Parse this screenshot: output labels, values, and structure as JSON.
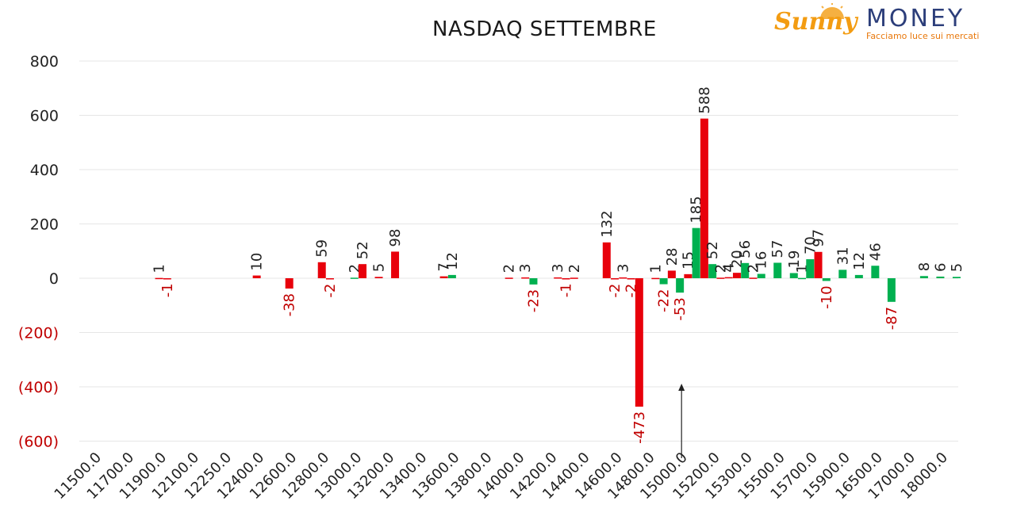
{
  "title": "NASDAQ SETTEMBRE",
  "logo": {
    "brand_word": "Sunny",
    "brand_name": "MONEY",
    "tagline": "Facciamo luce sui mercati"
  },
  "colors": {
    "red": "#e8000b",
    "green": "#00b050",
    "negative_tick": "#c00000",
    "positive_tick": "#222222"
  },
  "chart_data": {
    "type": "bar",
    "categories": [
      "11500.0",
      "11700.0",
      "11900.0",
      "12100.0",
      "12250.0",
      "12400.0",
      "12600.0",
      "12800.0",
      "13000.0",
      "13200.0",
      "13400.0",
      "13600.0",
      "13800.0",
      "14000.0",
      "14200.0",
      "14400.0",
      "14600.0",
      "14800.0",
      "15000.0",
      "15200.0",
      "15300.0",
      "15500.0",
      "15700.0",
      "15900.0",
      "16500.0",
      "17000.0",
      "18000.0"
    ],
    "ylim": [
      -600,
      800
    ],
    "yticks": [
      800,
      600,
      400,
      200,
      0,
      -200,
      -400,
      -600
    ],
    "ytick_labels": [
      "800",
      "600",
      "400",
      "200",
      "0",
      "(200)",
      "(400)",
      "(600)"
    ],
    "grid": true,
    "annotation": "arrow pointing up at 15000.0",
    "bars": [
      {
        "pos": 2.45,
        "value": 1,
        "color": "red"
      },
      {
        "pos": 2.7,
        "value": -1,
        "color": "red"
      },
      {
        "pos": 5.45,
        "value": 10,
        "color": "red"
      },
      {
        "pos": 6.45,
        "value": -38,
        "color": "red"
      },
      {
        "pos": 7.45,
        "value": 59,
        "color": "red"
      },
      {
        "pos": 7.7,
        "value": -2,
        "color": "red"
      },
      {
        "pos": 8.45,
        "value": 2,
        "color": "green"
      },
      {
        "pos": 8.7,
        "value": 52,
        "color": "red"
      },
      {
        "pos": 9.2,
        "value": 5,
        "color": "red"
      },
      {
        "pos": 9.7,
        "value": 98,
        "color": "red"
      },
      {
        "pos": 11.2,
        "value": 7,
        "color": "red"
      },
      {
        "pos": 11.45,
        "value": 12,
        "color": "green"
      },
      {
        "pos": 13.2,
        "value": 2,
        "color": "red"
      },
      {
        "pos": 13.7,
        "value": 3,
        "color": "red"
      },
      {
        "pos": 13.95,
        "value": -23,
        "color": "green"
      },
      {
        "pos": 14.7,
        "value": 3,
        "color": "red"
      },
      {
        "pos": 14.95,
        "value": -1,
        "color": "red"
      },
      {
        "pos": 15.2,
        "value": 2,
        "color": "red"
      },
      {
        "pos": 16.2,
        "value": 132,
        "color": "red"
      },
      {
        "pos": 16.45,
        "value": -2,
        "color": "red"
      },
      {
        "pos": 16.7,
        "value": 3,
        "color": "red"
      },
      {
        "pos": 16.95,
        "value": -2,
        "color": "red"
      },
      {
        "pos": 17.2,
        "value": -473,
        "color": "red"
      },
      {
        "pos": 17.7,
        "value": 1,
        "color": "red"
      },
      {
        "pos": 17.95,
        "value": -22,
        "color": "green"
      },
      {
        "pos": 18.2,
        "value": 28,
        "color": "red"
      },
      {
        "pos": 18.45,
        "value": -53,
        "color": "green"
      },
      {
        "pos": 18.7,
        "value": 15,
        "color": "red"
      },
      {
        "pos": 18.95,
        "value": 185,
        "color": "green"
      },
      {
        "pos": 19.2,
        "value": 588,
        "color": "red"
      },
      {
        "pos": 19.45,
        "value": 52,
        "color": "green"
      },
      {
        "pos": 19.7,
        "value": 2,
        "color": "red"
      },
      {
        "pos": 19.95,
        "value": 4,
        "color": "red"
      },
      {
        "pos": 20.2,
        "value": 20,
        "color": "red"
      },
      {
        "pos": 20.45,
        "value": 56,
        "color": "green"
      },
      {
        "pos": 20.7,
        "value": 2,
        "color": "red"
      },
      {
        "pos": 20.95,
        "value": 16,
        "color": "green"
      },
      {
        "pos": 21.45,
        "value": 57,
        "color": "green"
      },
      {
        "pos": 21.95,
        "value": 19,
        "color": "green"
      },
      {
        "pos": 22.2,
        "value": 1,
        "color": "green"
      },
      {
        "pos": 22.45,
        "value": 70,
        "color": "green"
      },
      {
        "pos": 22.7,
        "value": 97,
        "color": "red"
      },
      {
        "pos": 22.95,
        "value": -10,
        "color": "green"
      },
      {
        "pos": 23.45,
        "value": 31,
        "color": "green"
      },
      {
        "pos": 23.95,
        "value": 12,
        "color": "green"
      },
      {
        "pos": 24.45,
        "value": 46,
        "color": "green"
      },
      {
        "pos": 24.95,
        "value": -87,
        "color": "green"
      },
      {
        "pos": 25.95,
        "value": 8,
        "color": "green"
      },
      {
        "pos": 26.45,
        "value": 6,
        "color": "green"
      },
      {
        "pos": 26.95,
        "value": 5,
        "color": "green"
      }
    ]
  }
}
